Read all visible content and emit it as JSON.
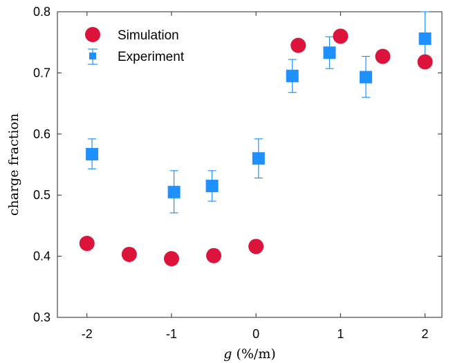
{
  "chart_data": {
    "type": "scatter",
    "xlabel_var": "g",
    "xlabel_unit": " (%/m)",
    "ylabel": "charge fraction",
    "xlim": [
      -2.35,
      2.2
    ],
    "ylim": [
      0.3,
      0.8
    ],
    "xticks": [
      -2,
      -1,
      0,
      1,
      2
    ],
    "xtick_labels": [
      "-2",
      "-1",
      "0",
      "1",
      "2"
    ],
    "yticks": [
      0.3,
      0.4,
      0.5,
      0.6,
      0.7,
      0.8
    ],
    "ytick_labels": [
      "0.3",
      "0.4",
      "0.5",
      "0.6",
      "0.7",
      "0.8"
    ],
    "grid": false,
    "legend_position": "top-left",
    "series": [
      {
        "name": "Simulation",
        "color": "#dc143c",
        "marker": "circle",
        "x": [
          -2,
          -1.5,
          -1,
          -0.5,
          0,
          0.5,
          1,
          1.5,
          2
        ],
        "y": [
          0.421,
          0.403,
          0.396,
          0.401,
          0.416,
          0.745,
          0.76,
          0.727,
          0.718
        ]
      },
      {
        "name": "Experiment",
        "color": "#1e90ff",
        "marker": "square",
        "x": [
          -1.94,
          -0.97,
          -0.52,
          0.03,
          0.43,
          0.87,
          1.3,
          2
        ],
        "y": [
          0.567,
          0.505,
          0.515,
          0.56,
          0.695,
          0.733,
          0.693,
          0.756
        ],
        "err_low": [
          0.543,
          0.471,
          0.49,
          0.528,
          0.668,
          0.707,
          0.66,
          0.71
        ],
        "err_high": [
          0.592,
          0.54,
          0.54,
          0.592,
          0.722,
          0.759,
          0.727,
          0.8
        ]
      }
    ]
  }
}
